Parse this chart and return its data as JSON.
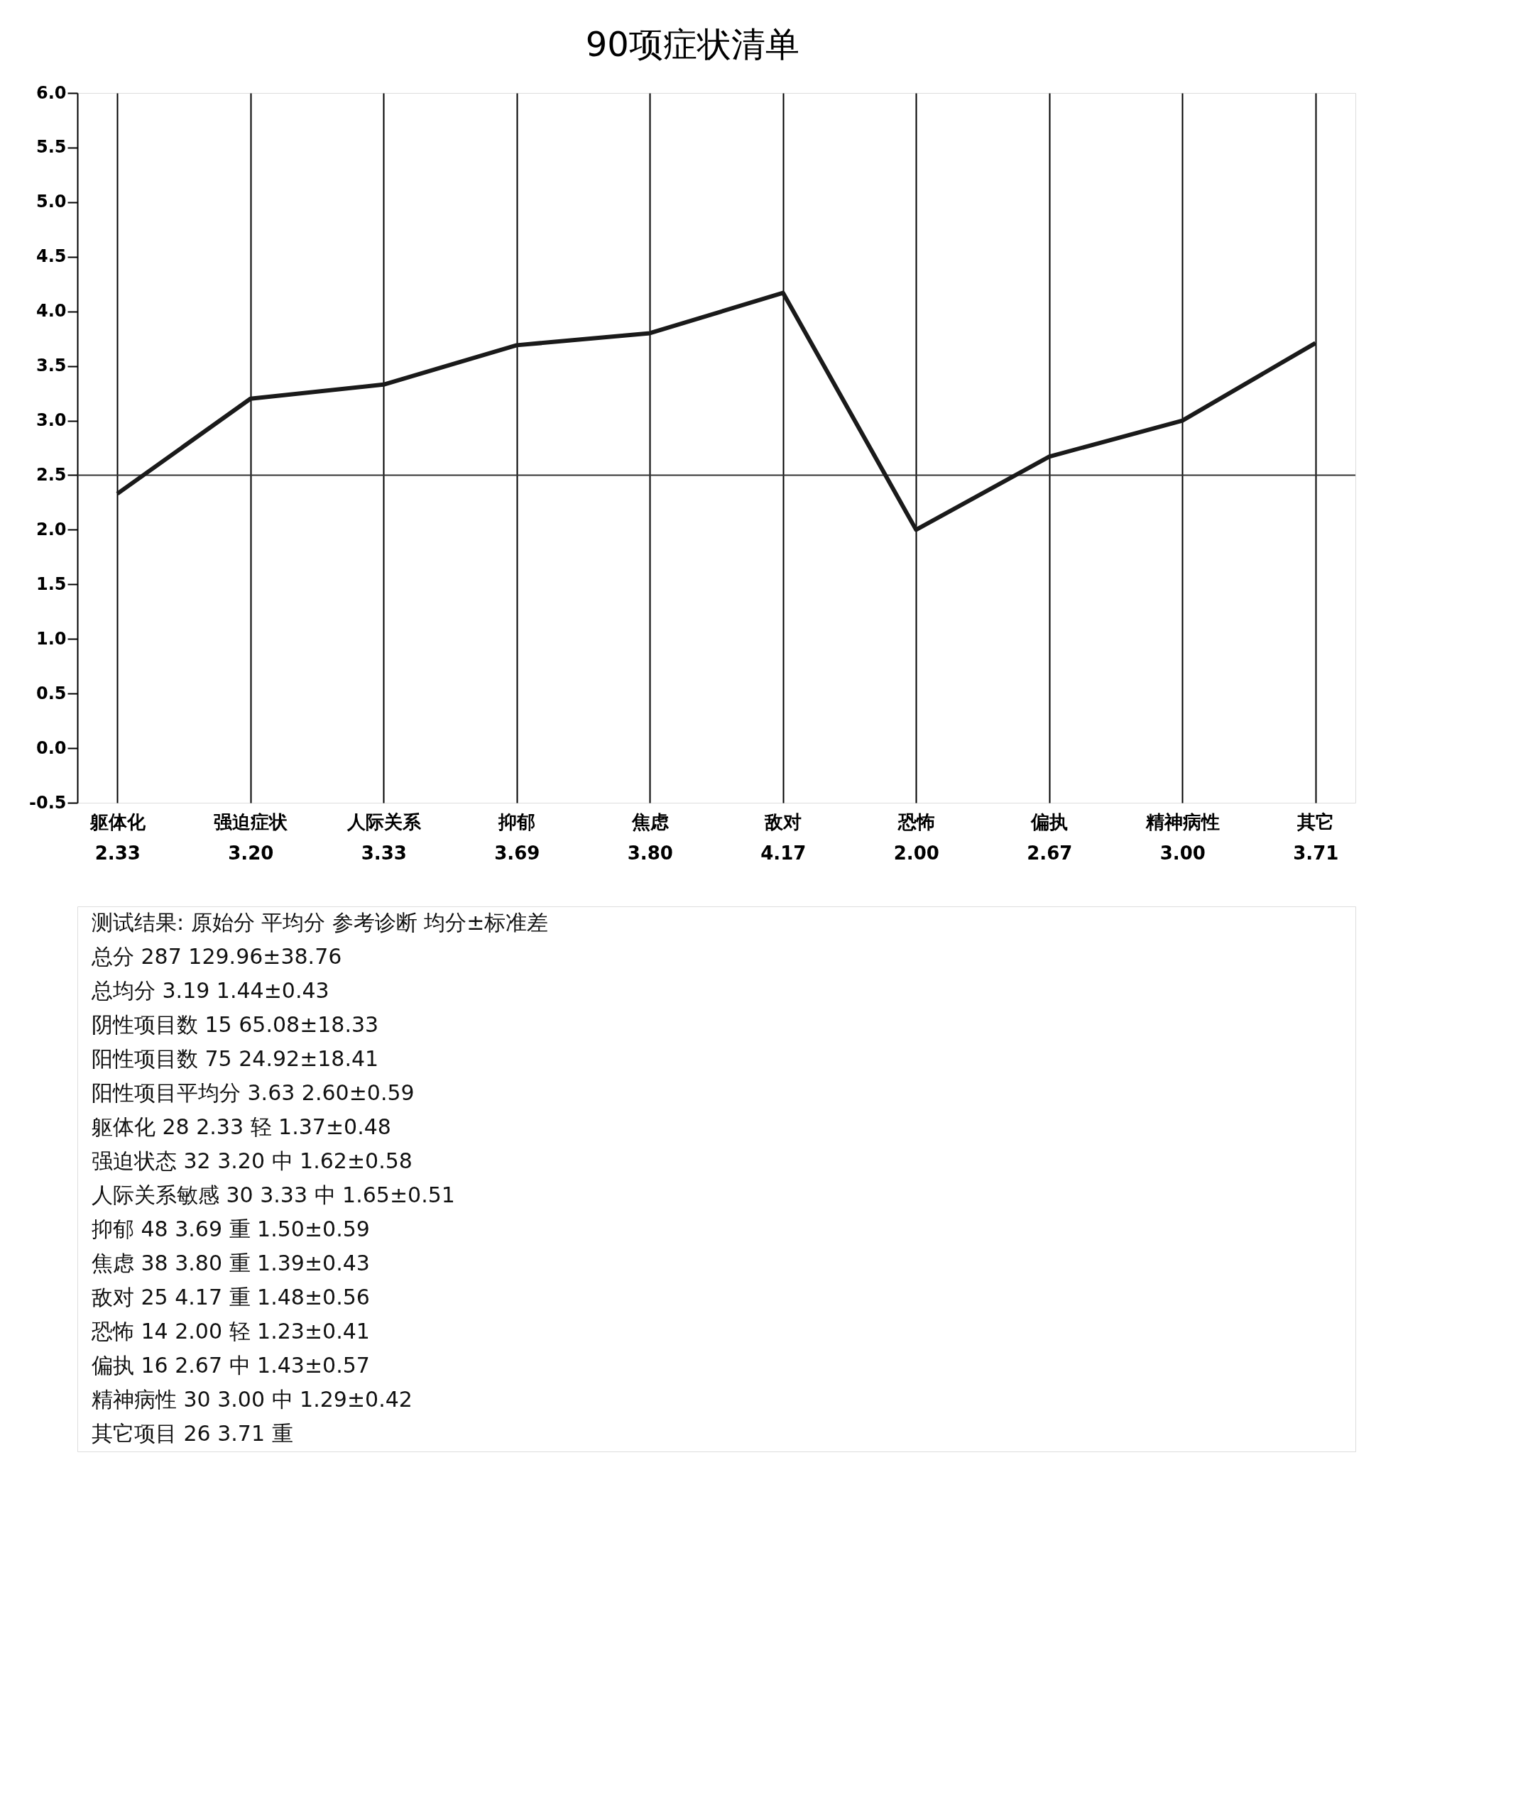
{
  "chart_data": {
    "type": "line",
    "title": "90项症状清单",
    "categories": [
      "躯体化",
      "强迫症状",
      "人际关系",
      "抑郁",
      "焦虑",
      "敌对",
      "恐怖",
      "偏执",
      "精神病性",
      "其它"
    ],
    "series": [
      {
        "color": "#1a1a1a",
        "values": [
          2.33,
          3.2,
          3.33,
          3.69,
          3.8,
          4.17,
          2.0,
          2.67,
          3.0,
          3.71
        ],
        "value_labels": [
          "2.33",
          "3.20",
          "3.33",
          "3.69",
          "3.80",
          "4.17",
          "2.00",
          "2.67",
          "3.00",
          "3.71"
        ]
      }
    ],
    "ylim": [
      -0.5,
      6.0
    ],
    "yticks": [
      {
        "value": -0.5,
        "label": "-0.5"
      },
      {
        "value": 0,
        "label": "0.0"
      },
      {
        "value": 0.5,
        "label": "0.5"
      },
      {
        "value": 1,
        "label": "1.0"
      },
      {
        "value": 1.5,
        "label": "1.5"
      },
      {
        "value": 2,
        "label": "2.0"
      },
      {
        "value": 2.5,
        "label": "2.5"
      },
      {
        "value": 3,
        "label": "3.0"
      },
      {
        "value": 3.5,
        "label": "3.5"
      },
      {
        "value": 4,
        "label": "4.0"
      },
      {
        "value": 4.5,
        "label": "4.5"
      },
      {
        "value": 5,
        "label": "5.0"
      },
      {
        "value": 5.5,
        "label": "5.5"
      },
      {
        "value": 6,
        "label": "6.0"
      }
    ],
    "ref_lines": [
      {
        "axis": "y",
        "value": 2.5,
        "color": "#333333"
      }
    ],
    "grid": "x",
    "annotations": [
      "测试结果:    原始分    平均分    参考诊断    均分±标准差",
      "总分    287    129.96±38.76",
      "总均分    3.19    1.44±0.43",
      "阴性项目数    15    65.08±18.33",
      "阳性项目数    75    24.92±18.41",
      "阳性项目平均分    3.63    2.60±0.59",
      "躯体化    28    2.33    轻    1.37±0.48",
      "强迫状态    32    3.20    中    1.62±0.58",
      "人际关系敏感    30    3.33    中    1.65±0.51",
      "抑郁    48    3.69    重    1.50±0.59",
      "焦虑    38    3.80    重    1.39±0.43",
      "敌对    25    4.17    重    1.48±0.56",
      "恐怖    14    2.00    轻    1.23±0.41",
      "偏执    16    2.67    中    1.43±0.57",
      "精神病性    30    3.00    中    1.29±0.42",
      "其它项目    26    3.71    重"
    ]
  }
}
